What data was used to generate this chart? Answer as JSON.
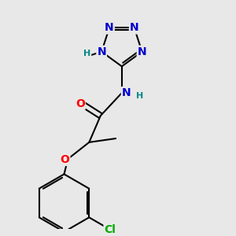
{
  "bg_color": "#e8e8e8",
  "atom_colors": {
    "C": "#000000",
    "N": "#0000cc",
    "O": "#ff0000",
    "Cl": "#00aa00",
    "H": "#008888"
  },
  "bond_color": "#000000",
  "bond_width": 1.5,
  "font_size_atom": 10,
  "font_size_small": 8,
  "figsize": [
    3.0,
    3.0
  ],
  "dpi": 100,
  "xlim": [
    0.5,
    3.5
  ],
  "ylim": [
    0.2,
    3.2
  ]
}
